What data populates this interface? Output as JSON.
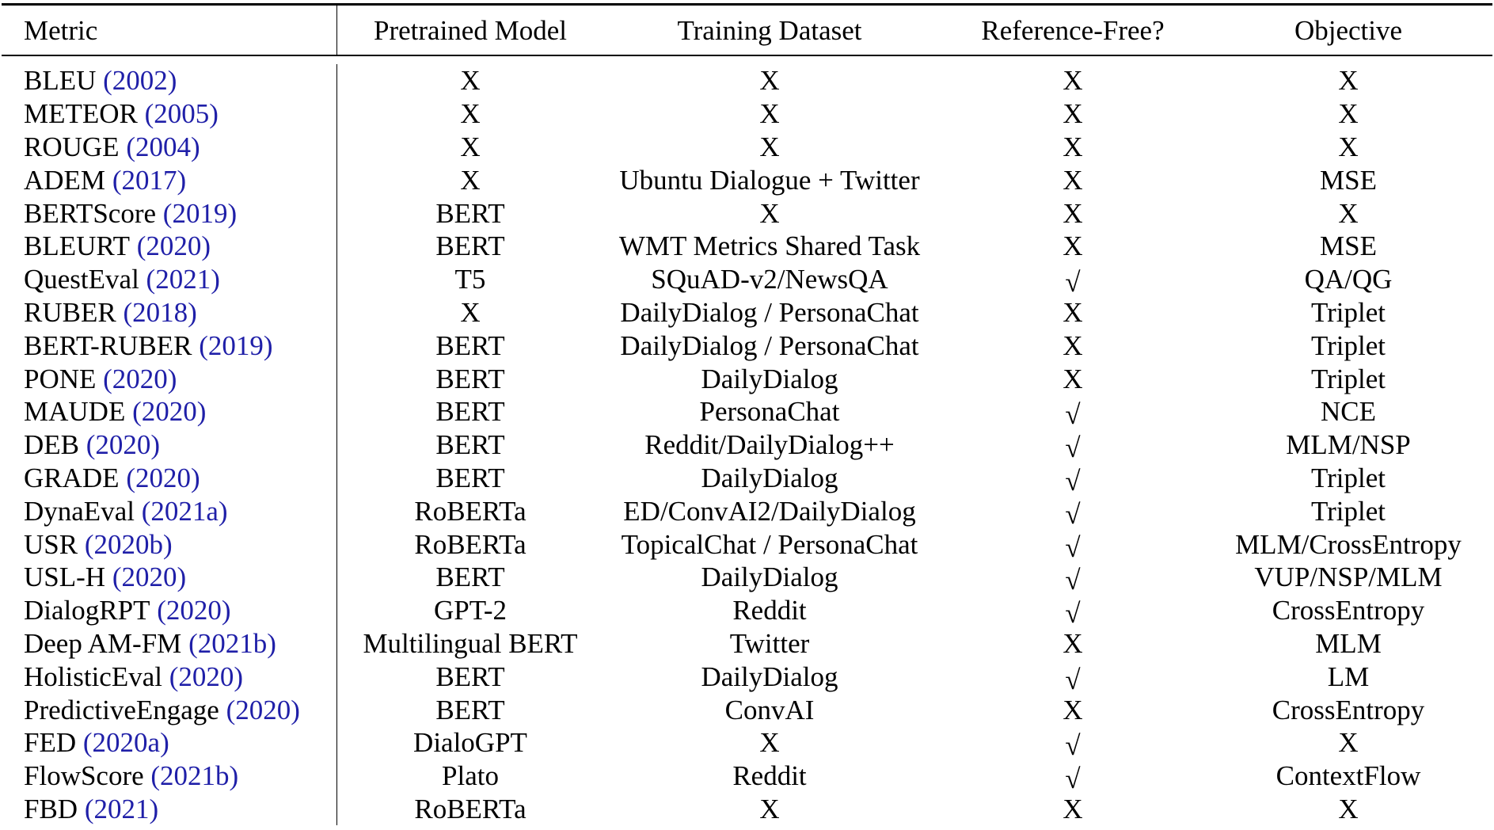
{
  "table": {
    "headers": [
      "Metric",
      "Pretrained Model",
      "Training Dataset",
      "Reference-Free?",
      "Objective"
    ],
    "rows": [
      {
        "metric": "BLEU",
        "cite": "(2002)",
        "model": "X",
        "dataset": "X",
        "ref_free": "X",
        "objective": "X"
      },
      {
        "metric": "METEOR",
        "cite": "(2005)",
        "model": "X",
        "dataset": "X",
        "ref_free": "X",
        "objective": "X"
      },
      {
        "metric": "ROUGE",
        "cite": "(2004)",
        "model": "X",
        "dataset": "X",
        "ref_free": "X",
        "objective": "X"
      },
      {
        "metric": "ADEM",
        "cite": "(2017)",
        "model": "X",
        "dataset": "Ubuntu Dialogue + Twitter",
        "ref_free": "X",
        "objective": "MSE"
      },
      {
        "metric": "BERTScore",
        "cite": "(2019)",
        "model": "BERT",
        "dataset": "X",
        "ref_free": "X",
        "objective": "X"
      },
      {
        "metric": "BLEURT",
        "cite": "(2020)",
        "model": "BERT",
        "dataset": "WMT Metrics Shared Task",
        "ref_free": "X",
        "objective": "MSE"
      },
      {
        "metric": "QuestEval",
        "cite": "(2021)",
        "model": "T5",
        "dataset": "SQuAD-v2/NewsQA",
        "ref_free": "√",
        "objective": "QA/QG"
      },
      {
        "metric": "RUBER",
        "cite": "(2018)",
        "model": "X",
        "dataset": "DailyDialog / PersonaChat",
        "ref_free": "X",
        "objective": "Triplet"
      },
      {
        "metric": "BERT-RUBER",
        "cite": "(2019)",
        "model": "BERT",
        "dataset": "DailyDialog / PersonaChat",
        "ref_free": "X",
        "objective": "Triplet"
      },
      {
        "metric": "PONE",
        "cite": "(2020)",
        "model": "BERT",
        "dataset": "DailyDialog",
        "ref_free": "X",
        "objective": "Triplet"
      },
      {
        "metric": "MAUDE",
        "cite": "(2020)",
        "model": "BERT",
        "dataset": "PersonaChat",
        "ref_free": "√",
        "objective": "NCE"
      },
      {
        "metric": "DEB",
        "cite": "(2020)",
        "model": "BERT",
        "dataset": "Reddit/DailyDialog++",
        "ref_free": "√",
        "objective": "MLM/NSP"
      },
      {
        "metric": "GRADE",
        "cite": "(2020)",
        "model": "BERT",
        "dataset": "DailyDialog",
        "ref_free": "√",
        "objective": "Triplet"
      },
      {
        "metric": "DynaEval",
        "cite": "(2021a)",
        "model": "RoBERTa",
        "dataset": "ED/ConvAI2/DailyDialog",
        "ref_free": "√",
        "objective": "Triplet"
      },
      {
        "metric": "USR",
        "cite": "(2020b)",
        "model": "RoBERTa",
        "dataset": "TopicalChat / PersonaChat",
        "ref_free": "√",
        "objective": "MLM/CrossEntropy"
      },
      {
        "metric": "USL-H",
        "cite": "(2020)",
        "model": "BERT",
        "dataset": "DailyDialog",
        "ref_free": "√",
        "objective": "VUP/NSP/MLM"
      },
      {
        "metric": "DialogRPT",
        "cite": "(2020)",
        "model": "GPT-2",
        "dataset": "Reddit",
        "ref_free": "√",
        "objective": "CrossEntropy"
      },
      {
        "metric": "Deep AM-FM",
        "cite": "(2021b)",
        "model": "Multilingual BERT",
        "dataset": "Twitter",
        "ref_free": "X",
        "objective": "MLM"
      },
      {
        "metric": "HolisticEval",
        "cite": "(2020)",
        "model": "BERT",
        "dataset": "DailyDialog",
        "ref_free": "√",
        "objective": "LM"
      },
      {
        "metric": "PredictiveEngage",
        "cite": "(2020)",
        "model": "BERT",
        "dataset": "ConvAI",
        "ref_free": "X",
        "objective": "CrossEntropy"
      },
      {
        "metric": "FED",
        "cite": "(2020a)",
        "model": "DialoGPT",
        "dataset": "X",
        "ref_free": "√",
        "objective": "X"
      },
      {
        "metric": "FlowScore",
        "cite": "(2021b)",
        "model": "Plato",
        "dataset": "Reddit",
        "ref_free": "√",
        "objective": "ContextFlow"
      },
      {
        "metric": "FBD",
        "cite": "(2021)",
        "model": "RoBERTa",
        "dataset": "X",
        "ref_free": "X",
        "objective": "X"
      }
    ]
  },
  "colors": {
    "text": "#000000",
    "citation": "#1f1fa8",
    "background": "#ffffff"
  }
}
